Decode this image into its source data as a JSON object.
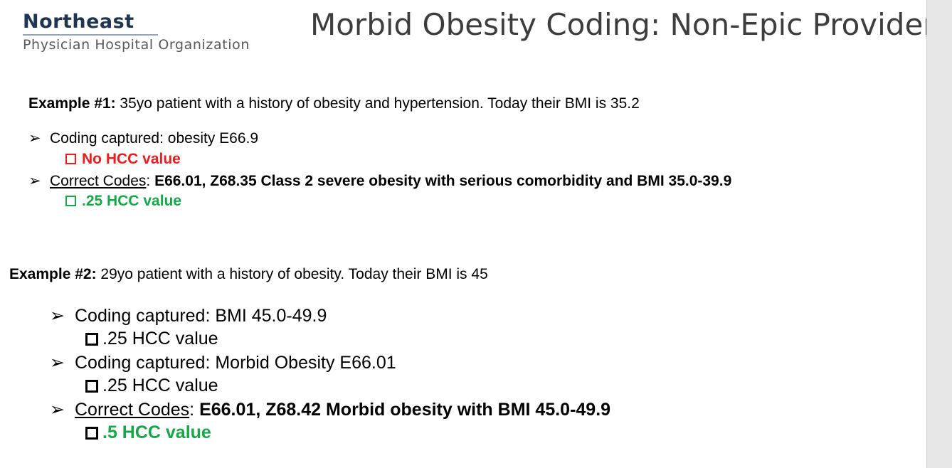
{
  "logo": {
    "name": "Northeast",
    "subtitle": "Physician Hospital Organization"
  },
  "title": "Morbid Obesity Coding: Non-Epic Providers",
  "example1": {
    "heading_label": "Example #1:",
    "heading_text": " 35yo patient with a history of obesity and hypertension. Today their BMI is 35.2",
    "bullet1": "Coding captured: obesity E66.9",
    "bullet1_sub": "No HCC value",
    "bullet2_label": "Correct Codes",
    "bullet2_colon": ": ",
    "bullet2_codes": "E66.01, Z68.35 Class 2 severe obesity with serious comorbidity and BMI 35.0-39.9",
    "bullet2_sub": ".25 HCC value"
  },
  "example2": {
    "heading_label": "Example #2:",
    "heading_text": " 29yo patient with a history of obesity. Today their BMI is 45",
    "bullet1": "Coding captured: BMI 45.0-49.9",
    "bullet1_sub": ".25 HCC value",
    "bullet2": "Coding captured: Morbid Obesity E66.01",
    "bullet2_sub": ".25 HCC value",
    "bullet3_label": "Correct Codes",
    "bullet3_colon": ": ",
    "bullet3_codes": "E66.01, Z68.42 Morbid obesity with BMI 45.0-49.9",
    "bullet3_sub": ".5 HCC value"
  },
  "colors": {
    "red": "#ee1c1c",
    "green": "#17a649",
    "logo_navy": "#1f3550",
    "title_gray": "#3d3d3d"
  }
}
